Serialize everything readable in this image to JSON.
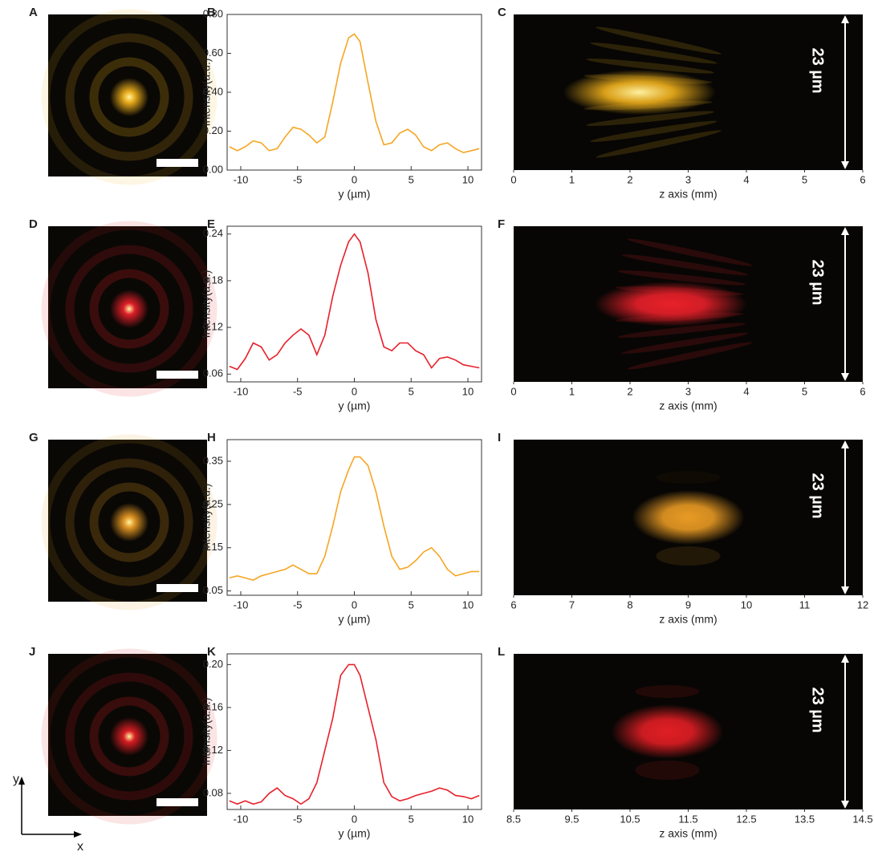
{
  "chart_data": [
    {
      "type": "image",
      "label": "A",
      "color": "#f2b21c"
    },
    {
      "type": "line",
      "label": "B",
      "color": "#f5a623",
      "x": [
        -11,
        -10.3,
        -9.6,
        -8.9,
        -8.2,
        -7.5,
        -6.8,
        -6.1,
        -5.4,
        -4.7,
        -4,
        -3.3,
        -2.6,
        -1.9,
        -1.2,
        -0.5,
        0,
        0.5,
        1.2,
        1.9,
        2.6,
        3.3,
        4,
        4.7,
        5.4,
        6.1,
        6.8,
        7.5,
        8.2,
        8.9,
        9.6,
        10.3,
        11
      ],
      "values": [
        0.12,
        0.1,
        0.12,
        0.15,
        0.14,
        0.1,
        0.11,
        0.17,
        0.22,
        0.21,
        0.18,
        0.14,
        0.17,
        0.35,
        0.55,
        0.68,
        0.7,
        0.66,
        0.45,
        0.25,
        0.13,
        0.14,
        0.19,
        0.21,
        0.18,
        0.12,
        0.1,
        0.13,
        0.14,
        0.11,
        0.09,
        0.1,
        0.11
      ],
      "xlim": [
        -11.2,
        11.2
      ],
      "xticks": [
        -10,
        -5,
        0,
        5,
        10
      ],
      "ylim": [
        0,
        0.8
      ],
      "yticks": [
        {
          "value": 0,
          "label": "0.00"
        },
        {
          "value": 0.2,
          "label": "0.20"
        },
        {
          "value": 0.4,
          "label": "0.40"
        },
        {
          "value": 0.6,
          "label": "0.60"
        },
        {
          "value": 0.8,
          "label": "0.80"
        }
      ],
      "xlabel": "y (µm)",
      "ylabel": "Intensity(a.u.)"
    },
    {
      "type": "beam",
      "label": "C",
      "color": "#f2b21c",
      "xlim": [
        0,
        6
      ],
      "xticks": [
        0,
        1,
        2,
        3,
        4,
        5,
        6
      ],
      "xlabel": "z axis (mm)",
      "annotation": "23 µm"
    },
    {
      "type": "image",
      "label": "D",
      "color": "#e8202a"
    },
    {
      "type": "line",
      "label": "E",
      "color": "#e8202a",
      "x": [
        -11,
        -10.3,
        -9.6,
        -8.9,
        -8.2,
        -7.5,
        -6.8,
        -6.1,
        -5.4,
        -4.7,
        -4,
        -3.3,
        -2.6,
        -1.9,
        -1.2,
        -0.5,
        0,
        0.5,
        1.2,
        1.9,
        2.6,
        3.3,
        4,
        4.7,
        5.4,
        6.1,
        6.8,
        7.5,
        8.2,
        8.9,
        9.6,
        10.3,
        11
      ],
      "values": [
        0.07,
        0.066,
        0.08,
        0.1,
        0.095,
        0.078,
        0.085,
        0.1,
        0.11,
        0.118,
        0.11,
        0.085,
        0.11,
        0.16,
        0.2,
        0.23,
        0.24,
        0.23,
        0.19,
        0.13,
        0.095,
        0.09,
        0.1,
        0.1,
        0.09,
        0.085,
        0.068,
        0.08,
        0.082,
        0.078,
        0.072,
        0.07,
        0.068
      ],
      "xlim": [
        -11.2,
        11.2
      ],
      "xticks": [
        -10,
        -5,
        0,
        5,
        10
      ],
      "ylim": [
        0.05,
        0.25
      ],
      "yticks": [
        0.06,
        0.12,
        0.18,
        0.24
      ],
      "xlabel": "y (µm)",
      "ylabel": "Intensity(a.u.)"
    },
    {
      "type": "beam",
      "label": "F",
      "color": "#e8202a",
      "xlim": [
        0,
        6
      ],
      "xticks": [
        0,
        1,
        2,
        3,
        4,
        5,
        6
      ],
      "xlabel": "z axis (mm)",
      "annotation": "23 µm"
    },
    {
      "type": "image",
      "label": "G",
      "color": "#e89a24"
    },
    {
      "type": "line",
      "label": "H",
      "color": "#f5a623",
      "x": [
        -11,
        -10.3,
        -9.6,
        -8.9,
        -8.2,
        -7.5,
        -6.8,
        -6.1,
        -5.4,
        -4.7,
        -4,
        -3.3,
        -2.6,
        -1.9,
        -1.2,
        -0.5,
        0,
        0.5,
        1.2,
        1.9,
        2.6,
        3.3,
        4,
        4.7,
        5.4,
        6.1,
        6.8,
        7.5,
        8.2,
        8.9,
        9.6,
        10.3,
        11
      ],
      "values": [
        0.08,
        0.085,
        0.08,
        0.075,
        0.085,
        0.09,
        0.095,
        0.1,
        0.11,
        0.1,
        0.09,
        0.09,
        0.13,
        0.2,
        0.28,
        0.33,
        0.36,
        0.36,
        0.34,
        0.28,
        0.2,
        0.13,
        0.1,
        0.105,
        0.12,
        0.14,
        0.15,
        0.13,
        0.1,
        0.085,
        0.09,
        0.095,
        0.095
      ],
      "xlim": [
        -11.2,
        11.2
      ],
      "xticks": [
        -10,
        -5,
        0,
        5,
        10
      ],
      "ylim": [
        0.04,
        0.4
      ],
      "yticks": [
        0.05,
        0.15,
        0.25,
        0.35
      ],
      "xlabel": "y (µm)",
      "ylabel": "Intensity(a.u.)"
    },
    {
      "type": "beam",
      "label": "I",
      "color": "#e89a24",
      "xlim": [
        6,
        12
      ],
      "xticks": [
        6,
        7,
        8,
        9,
        10,
        11,
        12
      ],
      "xlabel": "z axis (mm)",
      "annotation": "23 µm"
    },
    {
      "type": "image",
      "label": "J",
      "color": "#e01e24"
    },
    {
      "type": "line",
      "label": "K",
      "color": "#e8202a",
      "x": [
        -11,
        -10.3,
        -9.6,
        -8.9,
        -8.2,
        -7.5,
        -6.8,
        -6.1,
        -5.4,
        -4.7,
        -4,
        -3.3,
        -2.6,
        -1.9,
        -1.2,
        -0.5,
        0,
        0.5,
        1.2,
        1.9,
        2.6,
        3.3,
        4,
        4.7,
        5.4,
        6.1,
        6.8,
        7.5,
        8.2,
        8.9,
        9.6,
        10.3,
        11
      ],
      "values": [
        0.073,
        0.07,
        0.073,
        0.07,
        0.072,
        0.08,
        0.085,
        0.078,
        0.075,
        0.07,
        0.075,
        0.09,
        0.12,
        0.15,
        0.19,
        0.2,
        0.2,
        0.19,
        0.16,
        0.13,
        0.09,
        0.077,
        0.073,
        0.075,
        0.078,
        0.08,
        0.082,
        0.085,
        0.083,
        0.078,
        0.077,
        0.075,
        0.078
      ],
      "xlim": [
        -11.2,
        11.2
      ],
      "xticks": [
        -10,
        -5,
        0,
        5,
        10
      ],
      "ylim": [
        0.065,
        0.21
      ],
      "yticks": [
        0.08,
        0.12,
        0.16,
        {
          "value": 0.2,
          "label": "0.20"
        }
      ],
      "xlabel": "y (µm)",
      "ylabel": "Intensity(a.u.)"
    },
    {
      "type": "beam",
      "label": "L",
      "color": "#e01e24",
      "xlim": [
        8.5,
        14.5
      ],
      "xticks": [
        8.5,
        9.5,
        10.5,
        11.5,
        12.5,
        13.5,
        14.5
      ],
      "xlabel": "z axis (mm)",
      "annotation": "23 µm"
    }
  ],
  "axes_indicator": {
    "x": "x",
    "y": "y"
  }
}
